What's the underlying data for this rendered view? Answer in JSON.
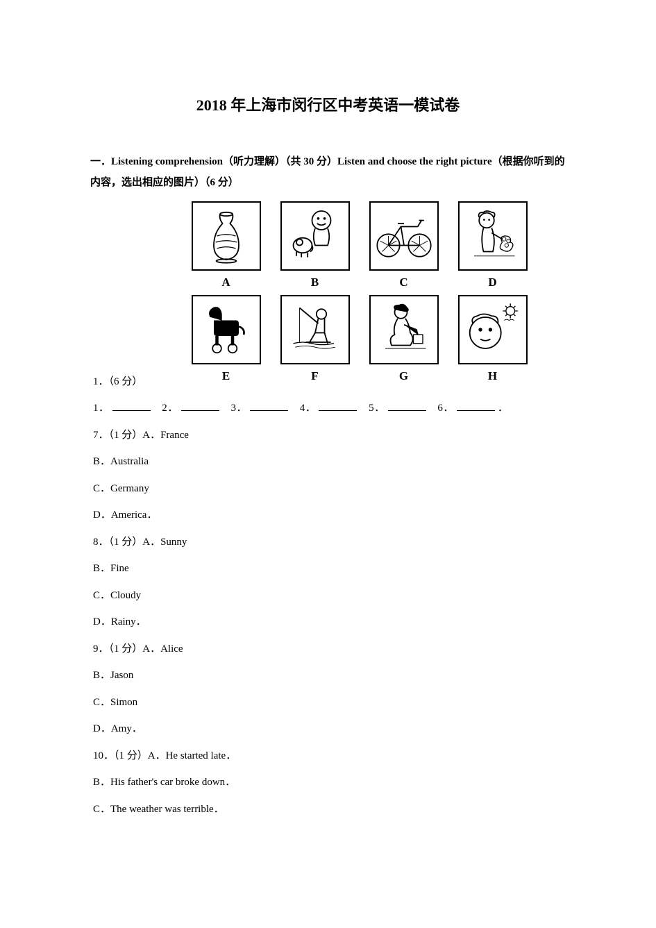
{
  "title": "2018 年上海市闵行区中考英语一模试卷",
  "section_header": "一．Listening comprehension（听力理解）（共 30 分）Listen and choose the right picture（根据你听到的内容，选出相应的图片）（6 分）",
  "pictures": {
    "row1": [
      {
        "label": "A",
        "name": "vase-icon"
      },
      {
        "label": "B",
        "name": "baby-dog-icon"
      },
      {
        "label": "C",
        "name": "bicycle-icon"
      },
      {
        "label": "D",
        "name": "girl-flowers-icon"
      }
    ],
    "row2": [
      {
        "label": "E",
        "name": "toy-horse-icon"
      },
      {
        "label": "F",
        "name": "fishing-icon"
      },
      {
        "label": "G",
        "name": "girl-kneeling-icon"
      },
      {
        "label": "H",
        "name": "face-sun-icon"
      }
    ]
  },
  "q1": {
    "prefix": "1．（6 分）",
    "blanks": [
      "1．",
      "2．",
      "3．",
      "4．",
      "5．",
      "6．"
    ],
    "trailing": "．"
  },
  "questions": [
    {
      "num": "7",
      "points": "（1 分）",
      "first_option": "A．France",
      "options": [
        "B．Australia",
        "C．Germany",
        "D．America．"
      ]
    },
    {
      "num": "8",
      "points": "（1 分）",
      "first_option": "A．Sunny",
      "options": [
        "B．Fine",
        "C．Cloudy",
        "D．Rainy．"
      ]
    },
    {
      "num": "9",
      "points": "（1 分）",
      "first_option": "A．Alice",
      "options": [
        "B．Jason",
        "C．Simon",
        "D．Amy．"
      ]
    },
    {
      "num": "10",
      "points": "（1 分）",
      "first_option": "A．He started late．",
      "options": [
        "B．His father's car broke down．",
        "C．The weather was terrible．"
      ]
    }
  ],
  "colors": {
    "text": "#000000",
    "background": "#ffffff",
    "border": "#000000"
  }
}
